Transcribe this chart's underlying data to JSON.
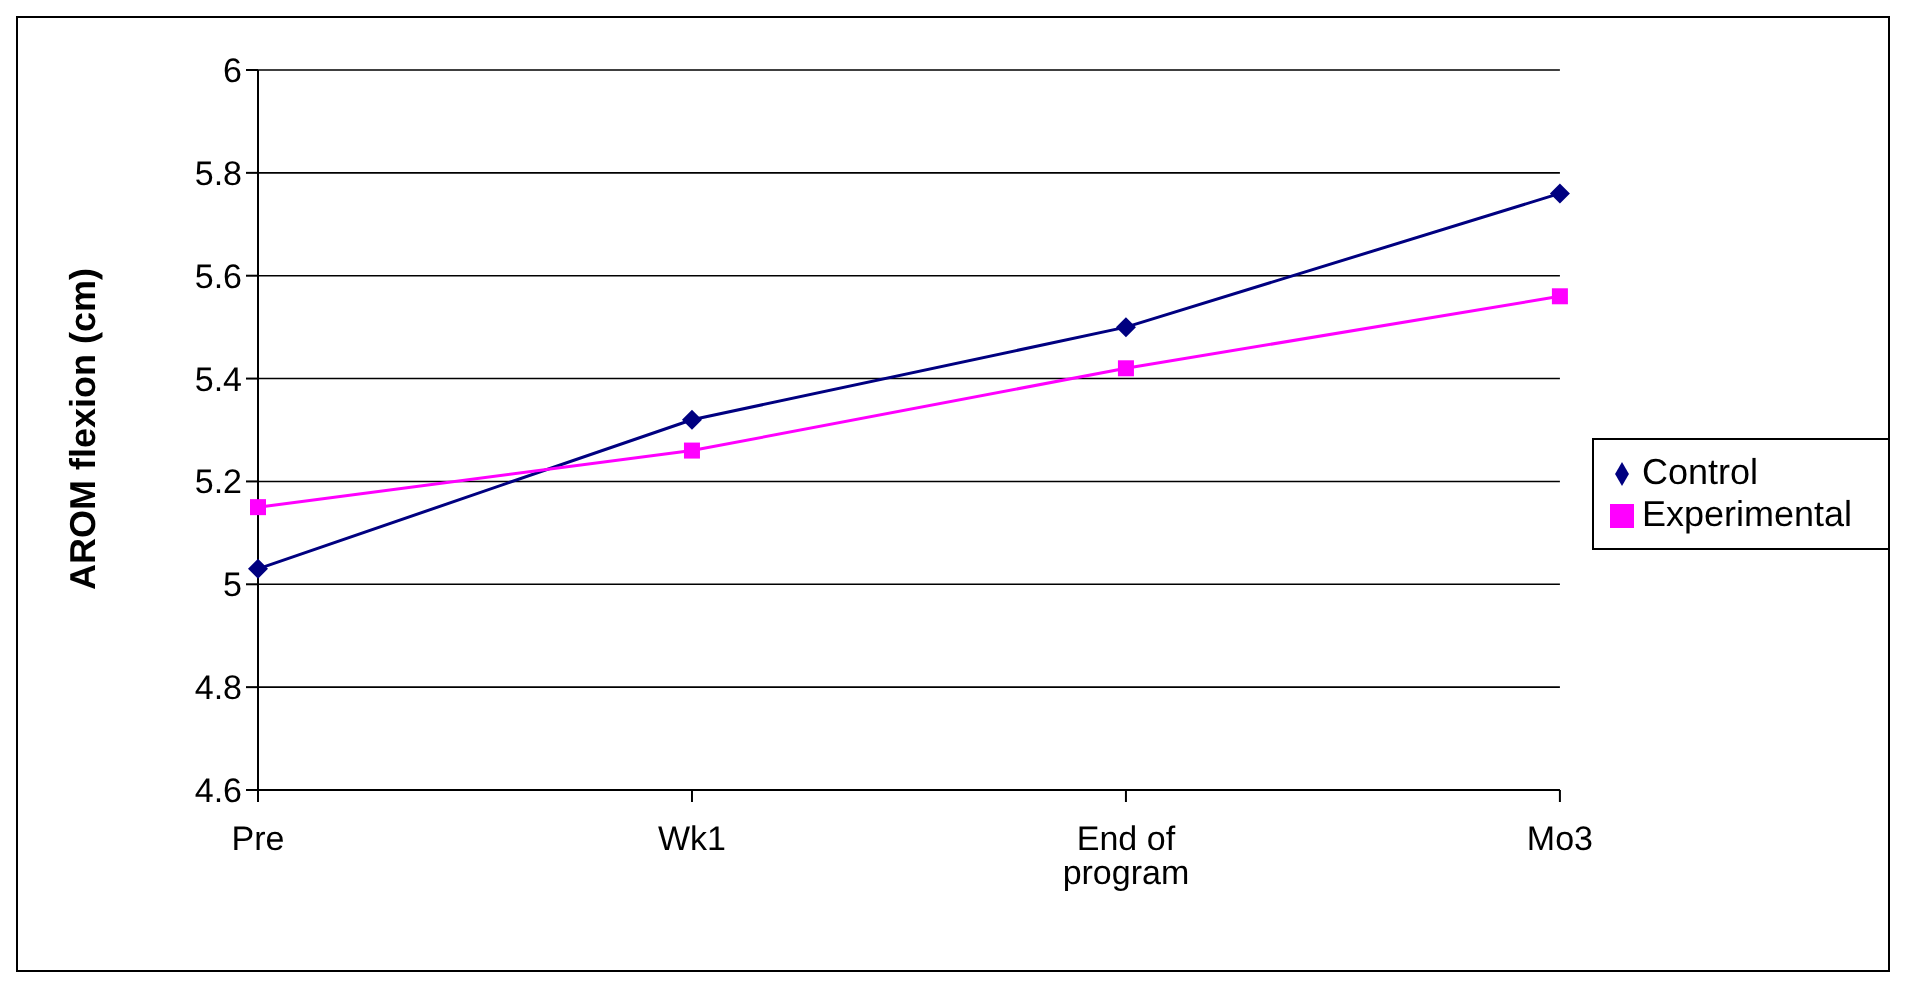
{
  "chart_data": {
    "type": "line",
    "ylabel": "AROM flexion (cm)",
    "categories": [
      "Pre",
      "Wk1",
      "End of program",
      "Mo3"
    ],
    "series": [
      {
        "name": "Control",
        "color": "#000080",
        "values": [
          5.03,
          5.32,
          5.5,
          5.76
        ],
        "marker": "diamond"
      },
      {
        "name": "Experimental",
        "color": "#ff00ff",
        "values": [
          5.15,
          5.26,
          5.42,
          5.56
        ],
        "marker": "square"
      }
    ],
    "ylim": [
      4.6,
      6
    ],
    "yticks": [
      4.6,
      4.8,
      5,
      5.2,
      5.4,
      5.6,
      5.8,
      6
    ],
    "grid": "y",
    "legend": "right"
  }
}
